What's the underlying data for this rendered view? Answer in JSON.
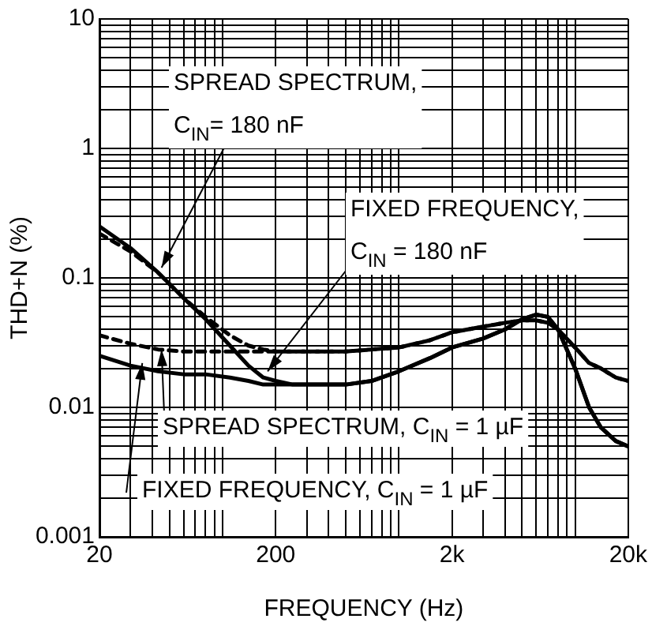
{
  "chart_data": {
    "type": "line",
    "xlabel": "FREQUENCY (Hz)",
    "ylabel": "THD+N (%)",
    "log": "xy",
    "grid": true,
    "legend": false,
    "marker": "none",
    "x": [
      20,
      30,
      43,
      60,
      80,
      110,
      140,
      170,
      200,
      250,
      350,
      500,
      700,
      1000,
      1500,
      2000,
      3000,
      4000,
      5000,
      6000,
      7000,
      8000,
      10000,
      12000,
      14000,
      17000,
      20000
    ],
    "series": [
      {
        "color": "#000000",
        "line_style": "dashed",
        "values": [
          0.22,
          0.16,
          0.11,
          0.07,
          0.05,
          0.036,
          0.03,
          0.028,
          0.027,
          0.027,
          0.027,
          0.027,
          0.028,
          0.029,
          0.033,
          0.038,
          0.042,
          0.045,
          0.047,
          0.047,
          0.045,
          0.04,
          0.029,
          0.022,
          0.02,
          0.017,
          0.016
        ]
      },
      {
        "color": "#000000",
        "line_style": "solid",
        "values": [
          0.25,
          0.17,
          0.11,
          0.07,
          0.048,
          0.03,
          0.021,
          0.017,
          0.016,
          0.015,
          0.015,
          0.015,
          0.016,
          0.019,
          0.024,
          0.029,
          0.034,
          0.04,
          0.048,
          0.052,
          0.05,
          0.04,
          0.02,
          0.01,
          0.007,
          0.0055,
          0.005
        ]
      },
      {
        "color": "#000000",
        "line_style": "dashed",
        "values": [
          0.036,
          0.031,
          0.028,
          0.027,
          0.027,
          0.027,
          0.027,
          0.027,
          0.027,
          0.027,
          0.027,
          0.027,
          0.028,
          0.029,
          0.033,
          0.038,
          0.042,
          0.045,
          0.047,
          0.047,
          0.045,
          0.04,
          0.029,
          0.022,
          0.02,
          0.017,
          0.016
        ]
      },
      {
        "color": "#000000",
        "line_style": "solid",
        "values": [
          0.025,
          0.021,
          0.019,
          0.018,
          0.018,
          0.017,
          0.016,
          0.015,
          0.015,
          0.015,
          0.015,
          0.015,
          0.016,
          0.019,
          0.024,
          0.029,
          0.034,
          0.04,
          0.048,
          0.052,
          0.05,
          0.04,
          0.02,
          0.01,
          0.007,
          0.0055,
          0.005
        ]
      }
    ],
    "xlim": [
      20,
      20000
    ],
    "xticks": [
      20,
      {
        "value": 30,
        "label": null
      },
      {
        "value": 40,
        "label": null
      },
      {
        "value": 50,
        "label": null
      },
      {
        "value": 60,
        "label": null
      },
      {
        "value": 70,
        "label": null
      },
      {
        "value": 80,
        "label": null
      },
      {
        "value": 90,
        "label": null
      },
      {
        "value": 100,
        "label": null
      },
      200,
      {
        "value": 300,
        "label": null
      },
      {
        "value": 400,
        "label": null
      },
      {
        "value": 500,
        "label": null
      },
      {
        "value": 600,
        "label": null
      },
      {
        "value": 700,
        "label": null
      },
      {
        "value": 800,
        "label": null
      },
      {
        "value": 900,
        "label": null
      },
      {
        "value": 1000,
        "label": null
      },
      {
        "value": 2000,
        "label": "2k"
      },
      {
        "value": 3000,
        "label": null
      },
      {
        "value": 4000,
        "label": null
      },
      {
        "value": 5000,
        "label": null
      },
      {
        "value": 6000,
        "label": null
      },
      {
        "value": 7000,
        "label": null
      },
      {
        "value": 8000,
        "label": null
      },
      {
        "value": 9000,
        "label": null
      },
      {
        "value": 10000,
        "label": null
      },
      {
        "value": 20000,
        "label": "20k"
      }
    ],
    "ylim": [
      0.001,
      10
    ],
    "yticks": [
      0.001,
      {
        "value": 0.002,
        "label": null
      },
      {
        "value": 0.003,
        "label": null
      },
      {
        "value": 0.004,
        "label": null
      },
      {
        "value": 0.005,
        "label": null
      },
      {
        "value": 0.006,
        "label": null
      },
      {
        "value": 0.007,
        "label": null
      },
      {
        "value": 0.008,
        "label": null
      },
      {
        "value": 0.009,
        "label": null
      },
      0.01,
      {
        "value": 0.02,
        "label": null
      },
      {
        "value": 0.03,
        "label": null
      },
      {
        "value": 0.04,
        "label": null
      },
      {
        "value": 0.05,
        "label": null
      },
      {
        "value": 0.06,
        "label": null
      },
      {
        "value": 0.07,
        "label": null
      },
      {
        "value": 0.08,
        "label": null
      },
      {
        "value": 0.09,
        "label": null
      },
      0.1,
      {
        "value": 0.2,
        "label": null
      },
      {
        "value": 0.3,
        "label": null
      },
      {
        "value": 0.4,
        "label": null
      },
      {
        "value": 0.5,
        "label": null
      },
      {
        "value": 0.6,
        "label": null
      },
      {
        "value": 0.7,
        "label": null
      },
      {
        "value": 0.8,
        "label": null
      },
      {
        "value": 0.9,
        "label": null
      },
      1,
      {
        "value": 2,
        "label": null
      },
      {
        "value": 3,
        "label": null
      },
      {
        "value": 4,
        "label": null
      },
      {
        "value": 5,
        "label": null
      },
      {
        "value": 6,
        "label": null
      },
      {
        "value": 7,
        "label": null
      },
      {
        "value": 8,
        "label": null
      },
      {
        "value": 9,
        "label": null
      },
      10
    ],
    "annotations": [
      {
        "text": "SPREAD SPECTRUM,\nC$_{IN}$= 180 nF",
        "x": 45,
        "y": 0.12
      },
      {
        "text": "FIXED FREQUENCY,\nC$_{IN}$ = 180 nF",
        "x": 180,
        "y": 0.019
      },
      {
        "text": "SPREAD SPECTRUM, C$_{IN}$ = 1 µF",
        "x": 45,
        "y": 0.028
      },
      {
        "text": "FIXED FREQUENCY, C$_{IN}$ = 1 µF",
        "x": 35,
        "y": 0.022
      }
    ]
  }
}
